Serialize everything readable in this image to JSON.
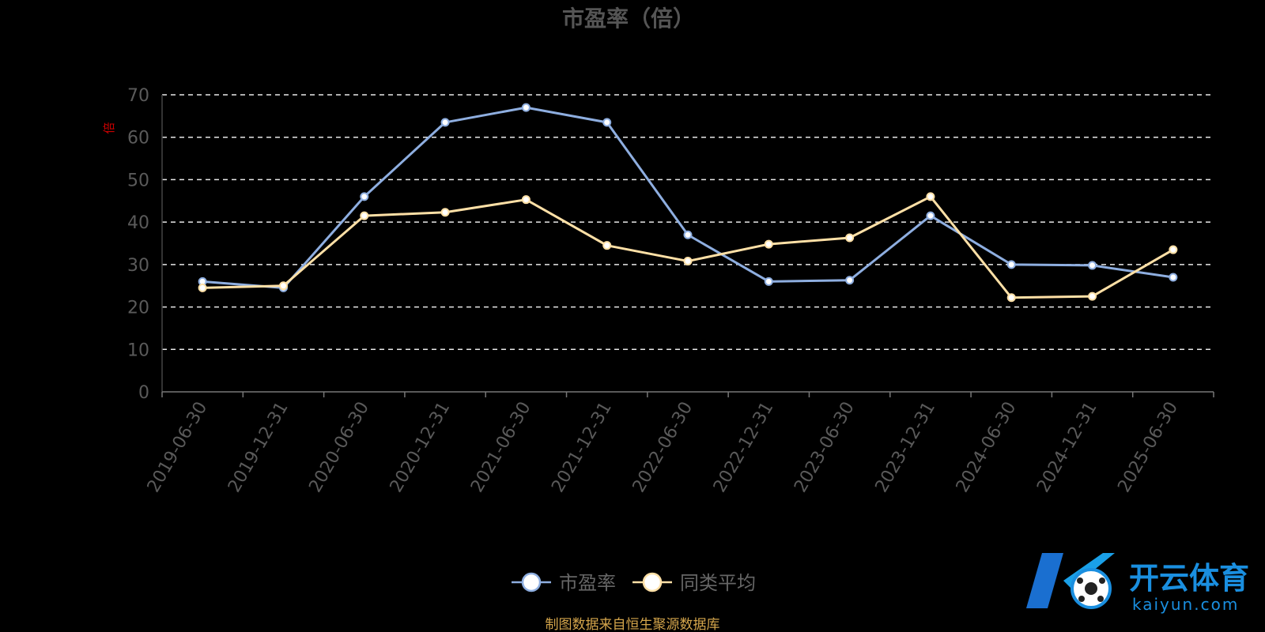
{
  "chart_data": {
    "type": "line",
    "title": "市盈率（倍）",
    "ylabel": "倍",
    "ylim": [
      0,
      70
    ],
    "yticks": [
      0,
      10,
      20,
      30,
      40,
      50,
      60,
      70
    ],
    "grid": true,
    "legend_position": "bottom-center",
    "categories": [
      "2019-06-30",
      "2019-12-31",
      "2020-06-30",
      "2020-12-31",
      "2021-06-30",
      "2021-12-31",
      "2022-06-30",
      "2022-12-31",
      "2023-06-30",
      "2023-12-31",
      "2024-06-30",
      "2024-12-31",
      "2025-06-30"
    ],
    "series": [
      {
        "name": "市盈率",
        "color": "#8eaee0",
        "values": [
          26.0,
          24.5,
          46.0,
          63.5,
          67.0,
          63.5,
          37.0,
          26.0,
          26.3,
          41.5,
          30.0,
          29.8,
          27.0
        ]
      },
      {
        "name": "同类平均",
        "color": "#ffe0a6",
        "values": [
          24.5,
          25.0,
          41.5,
          42.3,
          45.3,
          34.5,
          30.8,
          34.8,
          36.3,
          46.0,
          22.2,
          22.5,
          33.5
        ]
      }
    ]
  },
  "source_note": "制图数据来自恒生聚源数据库",
  "watermark": {
    "brand": "开云体育",
    "domain": "kaiyun.com"
  }
}
